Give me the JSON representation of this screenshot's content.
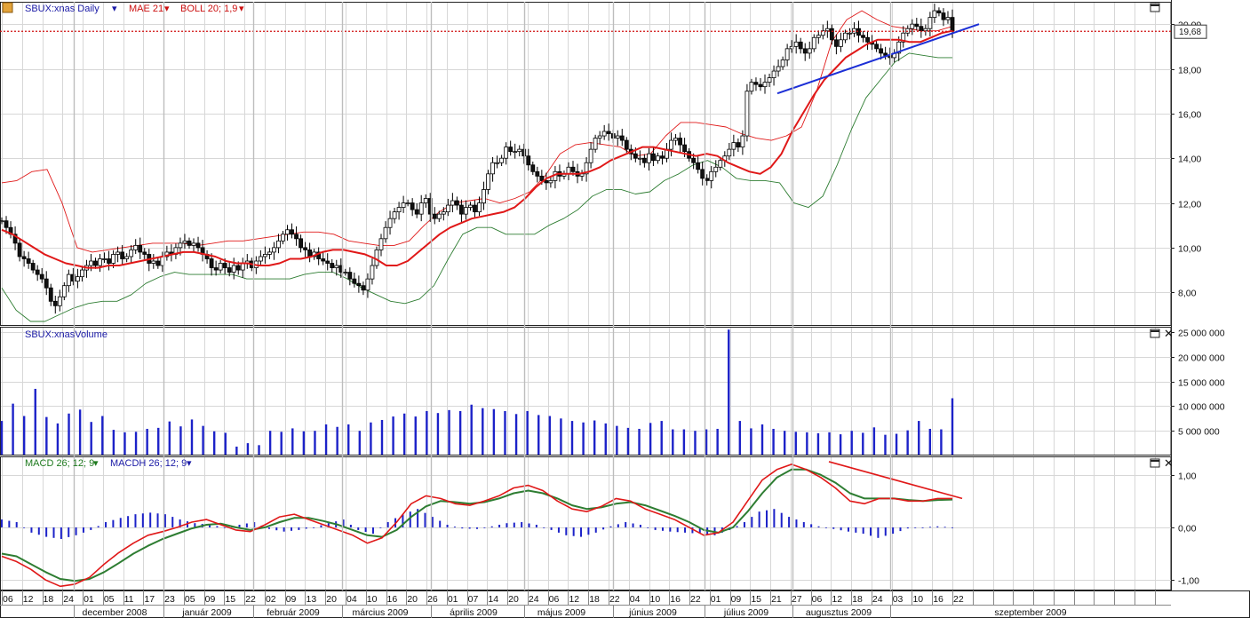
{
  "panels": {
    "price": {
      "symbol_label": "SBUX:xnas Daily",
      "indicators": [
        "MAE 21",
        "BOLL 20; 1,9"
      ],
      "last_price_label": "19,68",
      "y_ticks": [
        "8,00",
        "10,00",
        "12,00",
        "14,00",
        "16,00",
        "18,00",
        "20,00"
      ]
    },
    "volume": {
      "title": "SBUX:xnasVolume",
      "y_ticks": [
        "5 000 000",
        "10 000 000",
        "15 000 000",
        "20 000 000",
        "25 000 000"
      ]
    },
    "macd": {
      "indicators": [
        "MACD 26; 12; 9",
        "MACDH 26; 12; 9"
      ],
      "y_ticks": [
        "-1,00",
        "0,00",
        "1,00"
      ]
    }
  },
  "x_axis": {
    "day_ticks": [
      "06",
      "12",
      "18",
      "24",
      "01",
      "05",
      "11",
      "17",
      "23",
      "05",
      "09",
      "15",
      "22",
      "02",
      "09",
      "13",
      "20",
      "04",
      "10",
      "16",
      "20",
      "26",
      "01",
      "07",
      "14",
      "20",
      "24",
      "06",
      "12",
      "18",
      "22",
      "04",
      "10",
      "16",
      "22",
      "01",
      "09",
      "15",
      "21",
      "27",
      "06",
      "12",
      "18",
      "24",
      "03",
      "10",
      "16",
      "22"
    ],
    "months": [
      "december 2008",
      "január 2009",
      "február 2009",
      "március 2009",
      "április 2009",
      "május 2009",
      "június 2009",
      "július 2009",
      "augusztus 2009",
      "szeptember 2009"
    ]
  },
  "colors": {
    "candle_body": "#ffffff",
    "candle_edge": "#000000",
    "moving_average": "#e01818",
    "boll_upper": "#e01818",
    "boll_lower": "#2e7d32",
    "trendline": "#1c2fd6",
    "last_price_line": "#d01010",
    "volume_bar": "#1c22c8",
    "macd_line": "#e01818",
    "signal_line": "#2e7d32",
    "histogram": "#1c22c8",
    "macd_trend": "#e01818"
  },
  "chart_data": [
    {
      "type": "candlestick",
      "title": "SBUX:xnas Daily",
      "ylim": [
        6.5,
        21.0
      ],
      "last_price": 19.68,
      "close_approx": [
        11.2,
        10.9,
        10.6,
        10.2,
        9.6,
        9.5,
        9.3,
        9.0,
        8.8,
        8.6,
        8.2,
        7.6,
        7.4,
        7.8,
        8.3,
        8.8,
        8.5,
        8.7,
        9.0,
        9.2,
        9.4,
        9.2,
        9.5,
        9.5,
        9.3,
        9.7,
        9.8,
        9.5,
        9.6,
        9.9,
        10.1,
        9.8,
        9.7,
        9.3,
        9.4,
        9.2,
        9.6,
        9.8,
        9.7,
        10.0,
        10.2,
        10.3,
        10.1,
        10.2,
        10.0,
        9.7,
        9.5,
        9.1,
        9.0,
        9.3,
        9.1,
        8.9,
        9.2,
        9.0,
        9.3,
        9.4,
        9.1,
        9.4,
        9.6,
        9.7,
        9.8,
        10.0,
        10.3,
        10.6,
        10.8,
        10.6,
        10.4,
        10.0,
        9.9,
        9.6,
        9.8,
        9.5,
        9.4,
        9.3,
        9.1,
        9.2,
        8.9,
        8.9,
        8.6,
        8.4,
        8.3,
        8.1,
        8.6,
        9.2,
        9.9,
        10.4,
        10.9,
        11.3,
        11.6,
        11.8,
        12.0,
        12.0,
        11.7,
        11.5,
        12.0,
        12.2,
        11.5,
        11.3,
        11.5,
        11.6,
        11.9,
        12.1,
        11.9,
        11.5,
        11.8,
        11.9,
        11.6,
        12.0,
        12.6,
        13.3,
        13.8,
        13.8,
        14.0,
        14.5,
        14.3,
        14.3,
        14.4,
        14.1,
        13.7,
        13.4,
        13.2,
        13.0,
        12.9,
        13.0,
        13.4,
        13.2,
        13.3,
        13.6,
        13.4,
        13.2,
        13.3,
        13.8,
        14.4,
        14.9,
        15.0,
        15.2,
        15.1,
        14.9,
        15.0,
        14.8,
        14.4,
        14.2,
        14.0,
        14.0,
        13.8,
        14.2,
        13.9,
        14.1,
        14.0,
        14.4,
        14.8,
        14.9,
        14.6,
        14.3,
        14.0,
        13.8,
        13.5,
        13.1,
        13.0,
        13.4,
        13.6,
        13.9,
        14.1,
        14.4,
        14.7,
        14.5,
        15.0,
        17.0,
        17.4,
        17.3,
        17.2,
        17.4,
        17.6,
        17.9,
        18.1,
        18.4,
        18.9,
        19.0,
        19.2,
        18.9,
        18.7,
        18.9,
        19.4,
        19.5,
        19.7,
        19.8,
        19.3,
        19.0,
        19.3,
        19.6,
        19.6,
        19.8,
        19.5,
        19.4,
        19.2,
        19.1,
        18.9,
        18.7,
        18.6,
        18.5,
        18.7,
        19.2,
        19.6,
        19.8,
        20.0,
        19.9,
        19.7,
        19.8,
        20.3,
        20.6,
        20.5,
        20.2,
        20.3,
        19.7
      ]
    },
    {
      "type": "line",
      "name": "MAE 21",
      "values_approx": [
        10.8,
        10.6,
        10.3,
        10.0,
        9.7,
        9.5,
        9.3,
        9.2,
        9.1,
        9.1,
        9.2,
        9.2,
        9.3,
        9.4,
        9.5,
        9.6,
        9.7,
        9.8,
        9.8,
        9.7,
        9.6,
        9.4,
        9.3,
        9.3,
        9.2,
        9.2,
        9.3,
        9.5,
        9.5,
        9.6,
        9.8,
        9.9,
        9.9,
        9.8,
        9.7,
        9.5,
        9.2,
        9.2,
        9.4,
        9.8,
        10.2,
        10.6,
        10.9,
        11.1,
        11.3,
        11.4,
        11.5,
        11.6,
        11.8,
        12.2,
        12.7,
        13.1,
        13.3,
        13.3,
        13.3,
        13.4,
        13.6,
        13.9,
        14.1,
        14.3,
        14.5,
        14.5,
        14.4,
        14.3,
        14.2,
        14.1,
        14.2,
        14.1,
        13.8,
        13.6,
        13.4,
        13.3,
        13.6,
        14.2,
        15.2,
        16.0,
        16.8,
        17.5,
        18.0,
        18.5,
        18.8,
        19.1,
        19.3,
        19.3,
        19.3,
        19.2,
        19.2,
        19.4,
        19.6,
        19.7
      ]
    },
    {
      "type": "line",
      "name": "BOLL 20; 1,9 upper",
      "values_approx": [
        12.9,
        13.0,
        13.4,
        13.5,
        12.0,
        10.0,
        9.8,
        9.9,
        10.0,
        10.1,
        10.2,
        10.2,
        10.2,
        10.1,
        10.2,
        10.3,
        10.3,
        10.4,
        10.5,
        10.6,
        10.7,
        10.7,
        10.6,
        10.3,
        10.2,
        10.1,
        10.1,
        10.3,
        11.0,
        11.6,
        12.0,
        12.1,
        12.2,
        12.0,
        12.2,
        12.5,
        13.2,
        14.2,
        14.6,
        14.7,
        14.6,
        14.5,
        14.1,
        14.2,
        15.0,
        15.6,
        15.6,
        15.5,
        15.4,
        15.1,
        14.9,
        14.8,
        15.0,
        15.4,
        17.0,
        19.2,
        20.2,
        20.6,
        20.2,
        19.9,
        19.8,
        19.7,
        19.7,
        19.9
      ]
    },
    {
      "type": "line",
      "name": "BOLL 20; 1,9 lower",
      "values_approx": [
        8.2,
        7.2,
        6.7,
        6.7,
        7.0,
        7.3,
        7.5,
        7.6,
        7.6,
        7.9,
        8.4,
        8.7,
        8.9,
        8.8,
        8.8,
        8.8,
        8.8,
        8.6,
        8.6,
        8.6,
        8.6,
        8.8,
        8.9,
        8.9,
        8.6,
        8.2,
        7.9,
        7.6,
        7.5,
        7.7,
        8.3,
        9.5,
        10.6,
        10.9,
        10.9,
        10.6,
        10.6,
        10.6,
        11.0,
        11.3,
        11.7,
        12.3,
        12.6,
        12.6,
        12.4,
        12.5,
        13.0,
        13.3,
        13.7,
        13.9,
        13.6,
        13.1,
        13.0,
        13.0,
        12.9,
        12.0,
        11.8,
        12.3,
        13.7,
        15.3,
        16.7,
        17.5,
        18.3,
        18.7,
        18.6,
        18.5,
        18.5
      ]
    },
    {
      "type": "bar",
      "name": "SBUX:xnasVolume",
      "ylim": [
        0,
        25000000
      ],
      "values_approx": [
        7000000,
        10500000,
        8000000,
        13500000,
        7800000,
        6500000,
        8500000,
        9300000,
        6800000,
        8000000,
        5200000,
        4700000,
        4800000,
        5400000,
        5600000,
        6900000,
        5900000,
        7300000,
        6000000,
        4900000,
        4600000,
        1800000,
        2500000,
        2100000,
        5000000,
        4800000,
        5500000,
        4900000,
        5000000,
        6300000,
        5800000,
        6300000,
        5000000,
        6700000,
        7200000,
        7900000,
        8500000,
        7900000,
        9000000,
        8600000,
        9200000,
        9000000,
        10300000,
        9600000,
        9400000,
        9000000,
        8400000,
        9000000,
        8200000,
        8000000,
        7500000,
        7000000,
        6700000,
        7100000,
        6500000,
        6000000,
        5600000,
        5400000,
        6600000,
        7000000,
        5300000,
        5300000,
        5000000,
        5300000,
        5400000,
        25500000,
        7000000,
        5500000,
        6300000,
        5400000,
        5000000,
        4800000,
        4700000,
        4500000,
        4700000,
        4300000,
        5000000,
        4600000,
        5700000,
        4200000,
        4400000,
        5100000,
        7000000,
        5400000,
        5300000,
        11600000
      ]
    },
    {
      "type": "line",
      "name": "MACD 26; 12; 9",
      "ylim": [
        -1.2,
        1.35
      ],
      "values_approx": [
        -0.55,
        -0.65,
        -0.8,
        -1.0,
        -1.12,
        -1.08,
        -0.95,
        -0.7,
        -0.48,
        -0.3,
        -0.15,
        -0.08,
        0.0,
        0.1,
        0.15,
        0.05,
        -0.05,
        -0.08,
        0.05,
        0.2,
        0.25,
        0.15,
        0.05,
        -0.05,
        -0.15,
        -0.3,
        -0.2,
        0.1,
        0.45,
        0.6,
        0.55,
        0.45,
        0.42,
        0.5,
        0.6,
        0.75,
        0.8,
        0.7,
        0.5,
        0.35,
        0.3,
        0.4,
        0.55,
        0.5,
        0.35,
        0.25,
        0.15,
        0.0,
        -0.15,
        -0.1,
        0.1,
        0.5,
        0.9,
        1.1,
        1.2,
        1.1,
        0.95,
        0.75,
        0.5,
        0.45,
        0.55,
        0.55,
        0.5,
        0.5,
        0.55,
        0.55
      ]
    },
    {
      "type": "line",
      "name": "MACD signal",
      "values_approx": [
        -0.5,
        -0.55,
        -0.7,
        -0.85,
        -0.98,
        -1.02,
        -0.98,
        -0.85,
        -0.68,
        -0.5,
        -0.35,
        -0.22,
        -0.12,
        -0.02,
        0.05,
        0.07,
        0.0,
        -0.05,
        0.0,
        0.1,
        0.18,
        0.18,
        0.12,
        0.05,
        -0.05,
        -0.15,
        -0.18,
        -0.05,
        0.2,
        0.4,
        0.5,
        0.48,
        0.45,
        0.48,
        0.55,
        0.65,
        0.7,
        0.65,
        0.55,
        0.42,
        0.35,
        0.38,
        0.45,
        0.48,
        0.42,
        0.32,
        0.22,
        0.1,
        -0.05,
        -0.1,
        0.0,
        0.3,
        0.65,
        0.95,
        1.1,
        1.1,
        1.0,
        0.85,
        0.65,
        0.55,
        0.55,
        0.55,
        0.52,
        0.5,
        0.52,
        0.53
      ]
    },
    {
      "type": "bar",
      "name": "MACDH 26; 12; 9",
      "values_approx": [
        0.15,
        0.1,
        -0.1,
        -0.18,
        -0.22,
        -0.15,
        -0.05,
        0.1,
        0.18,
        0.25,
        0.28,
        0.25,
        0.15,
        0.08,
        0.05,
        0.0,
        0.05,
        0.1,
        -0.03,
        -0.08,
        -0.05,
        0.0,
        0.08,
        0.15,
        -0.05,
        -0.12,
        0.1,
        0.25,
        0.35,
        0.2,
        0.05,
        -0.02,
        -0.03,
        0.02,
        0.08,
        0.1,
        0.05,
        -0.05,
        -0.15,
        -0.18,
        -0.1,
        0.02,
        0.1,
        0.05,
        -0.05,
        -0.08,
        -0.1,
        -0.12,
        -0.15,
        -0.05,
        0.1,
        0.3,
        0.35,
        0.2,
        0.1,
        0.02,
        -0.03,
        -0.08,
        -0.12,
        -0.2,
        -0.12,
        -0.02,
        0.0,
        0.02,
        0.0
      ]
    },
    {
      "type": "line",
      "name": "annotations",
      "trendline_price": [
        [
          16.9,
          17.0
        ],
        [
          19.6,
          19.5
        ]
      ],
      "trendline_macd": [
        [
          1.25,
          1.2
        ],
        [
          0.6,
          0.55
        ]
      ]
    }
  ]
}
